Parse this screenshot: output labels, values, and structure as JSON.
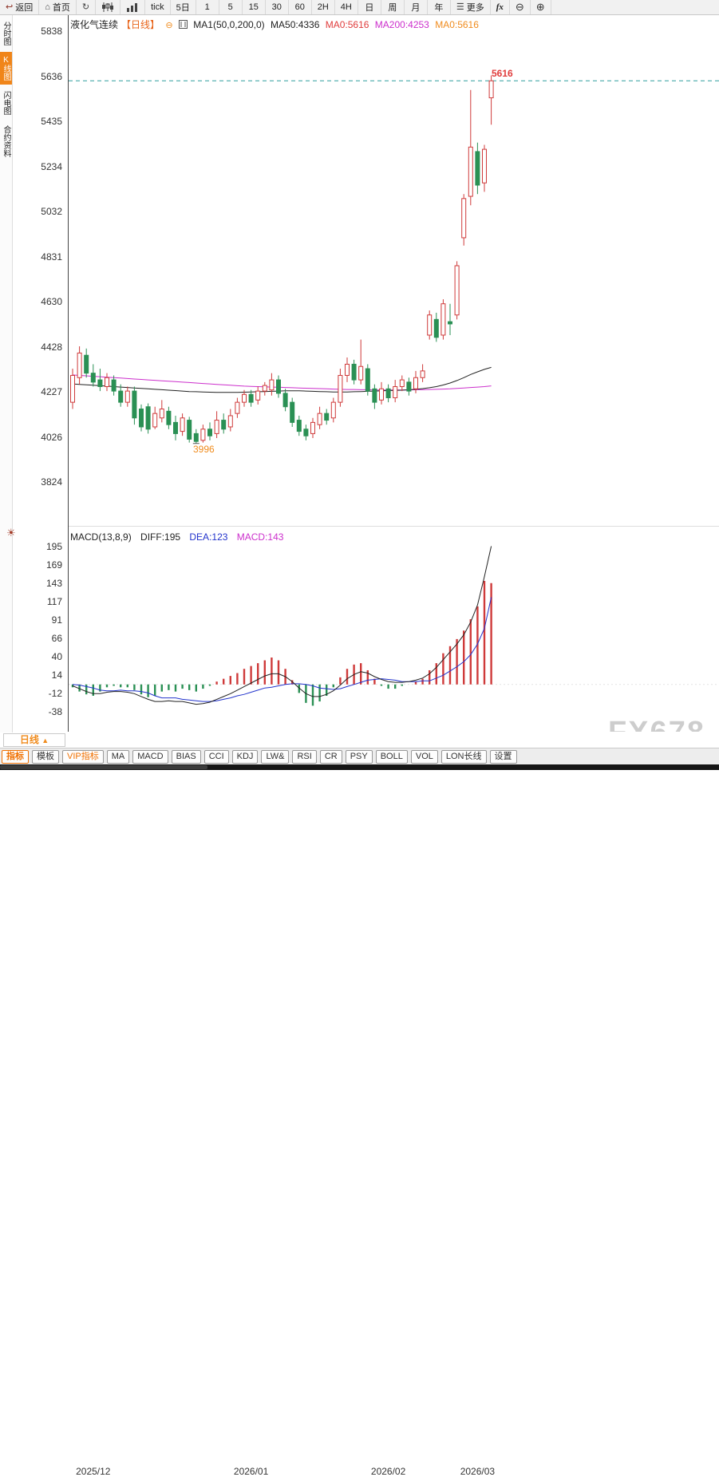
{
  "toolbar": {
    "back_label": "返回",
    "home_label": "首页",
    "tick_label": "tick",
    "five_day_label": "5日",
    "intervals": [
      "1",
      "5",
      "15",
      "30",
      "60",
      "2H",
      "4H",
      "日",
      "周",
      "月",
      "年"
    ],
    "more_label": "更多",
    "fx_label": "fx"
  },
  "sidebar": {
    "items": [
      {
        "label": "分时图",
        "active": false
      },
      {
        "label": "K线图",
        "active": true
      },
      {
        "label": "闪电图",
        "active": false
      },
      {
        "label": "合约资料",
        "active": false
      }
    ]
  },
  "chart_header": {
    "symbol": "液化气连续",
    "period": "【日线】",
    "ma_settings": "MA1(50,0,200,0)",
    "ma50": "MA50:4336",
    "ma0_red": "MA0:5616",
    "ma200": "MA200:4253",
    "ma0_orange": "MA0:5616"
  },
  "macd_header": {
    "label": "MACD(13,8,9)",
    "diff": "DIFF:195",
    "dea": "DEA:123",
    "macd": "MACD:143"
  },
  "annotations": {
    "last_price": "5616",
    "low_price": "3996",
    "period_selector": "日线",
    "period_selector_arrow": "▲",
    "watermark": "FX678"
  },
  "bottom_tabs": [
    {
      "label": "指标",
      "style": "primary"
    },
    {
      "label": "模板",
      "style": ""
    },
    {
      "label": "VIP指标",
      "style": "accent"
    },
    {
      "label": "MA",
      "style": ""
    },
    {
      "label": "MACD",
      "style": ""
    },
    {
      "label": "BIAS",
      "style": ""
    },
    {
      "label": "CCI",
      "style": ""
    },
    {
      "label": "KDJ",
      "style": ""
    },
    {
      "label": "LW&",
      "style": ""
    },
    {
      "label": "RSI",
      "style": ""
    },
    {
      "label": "CR",
      "style": ""
    },
    {
      "label": "PSY",
      "style": ""
    },
    {
      "label": "BOLL",
      "style": ""
    },
    {
      "label": "VOL",
      "style": ""
    },
    {
      "label": "LON长线",
      "style": ""
    },
    {
      "label": "设置",
      "style": ""
    }
  ],
  "colors": {
    "up": "#cf3a3a",
    "down": "#2a9054",
    "ma50": "#222222",
    "ma200": "#cc2fcc",
    "diff_line": "#222222",
    "dea_line": "#2233cc",
    "last_price_line": "#2e9e9e",
    "axis_line": "#444444",
    "red_text": "#e03c3c",
    "orange_text": "#f08c1e"
  },
  "chart_data": {
    "type": "candlestick",
    "title": "液化气连续 日线",
    "price_axis_labels": [
      "5838",
      "5636",
      "5435",
      "5234",
      "5032",
      "4831",
      "4630",
      "4428",
      "4227",
      "4026",
      "3824"
    ],
    "macd_axis_labels": [
      "195",
      "169",
      "143",
      "117",
      "91",
      "66",
      "40",
      "14",
      "-12",
      "-38"
    ],
    "ylim_price": [
      3824,
      5838
    ],
    "ylim_macd": [
      -38,
      195
    ],
    "x_ticks": [
      {
        "label": "2025/12",
        "index": 3
      },
      {
        "label": "2026/01",
        "index": 26
      },
      {
        "label": "2026/02",
        "index": 46
      },
      {
        "label": "2026/03",
        "index": 59
      }
    ],
    "last_price": 5616,
    "low_marker": {
      "index": 18,
      "value": 3996
    },
    "candles": [
      [
        4180,
        4330,
        4150,
        4300
      ],
      [
        4290,
        4430,
        4260,
        4400
      ],
      [
        4390,
        4420,
        4290,
        4310
      ],
      [
        4310,
        4350,
        4250,
        4270
      ],
      [
        4280,
        4330,
        4230,
        4250
      ],
      [
        4250,
        4310,
        4230,
        4290
      ],
      [
        4280,
        4300,
        4210,
        4230
      ],
      [
        4230,
        4260,
        4160,
        4180
      ],
      [
        4180,
        4250,
        4160,
        4230
      ],
      [
        4230,
        4250,
        4080,
        4110
      ],
      [
        4150,
        4170,
        4050,
        4070
      ],
      [
        4160,
        4175,
        4040,
        4060
      ],
      [
        4070,
        4160,
        4060,
        4130
      ],
      [
        4110,
        4190,
        4090,
        4150
      ],
      [
        4140,
        4160,
        4060,
        4080
      ],
      [
        4090,
        4120,
        4010,
        4040
      ],
      [
        4050,
        4130,
        4030,
        4110
      ],
      [
        4100,
        4115,
        4000,
        4015
      ],
      [
        4040,
        4060,
        3996,
        4005
      ],
      [
        4010,
        4080,
        4000,
        4060
      ],
      [
        4060,
        4090,
        4010,
        4030
      ],
      [
        4040,
        4140,
        4020,
        4100
      ],
      [
        4100,
        4130,
        4040,
        4060
      ],
      [
        4070,
        4150,
        4050,
        4120
      ],
      [
        4130,
        4200,
        4110,
        4180
      ],
      [
        4180,
        4235,
        4160,
        4215
      ],
      [
        4215,
        4235,
        4160,
        4180
      ],
      [
        4190,
        4250,
        4170,
        4230
      ],
      [
        4230,
        4270,
        4210,
        4255
      ],
      [
        4235,
        4310,
        4210,
        4280
      ],
      [
        4280,
        4300,
        4200,
        4220
      ],
      [
        4220,
        4240,
        4140,
        4160
      ],
      [
        4180,
        4200,
        4070,
        4090
      ],
      [
        4100,
        4120,
        4030,
        4050
      ],
      [
        4060,
        4080,
        4010,
        4030
      ],
      [
        4040,
        4110,
        4020,
        4090
      ],
      [
        4080,
        4160,
        4060,
        4130
      ],
      [
        4130,
        4150,
        4080,
        4100
      ],
      [
        4110,
        4200,
        4090,
        4180
      ],
      [
        4180,
        4330,
        4160,
        4300
      ],
      [
        4300,
        4380,
        4270,
        4350
      ],
      [
        4350,
        4370,
        4260,
        4280
      ],
      [
        4280,
        4460,
        4260,
        4340
      ],
      [
        4330,
        4350,
        4210,
        4230
      ],
      [
        4240,
        4260,
        4150,
        4180
      ],
      [
        4190,
        4270,
        4170,
        4240
      ],
      [
        4240,
        4260,
        4180,
        4200
      ],
      [
        4200,
        4280,
        4180,
        4250
      ],
      [
        4250,
        4300,
        4230,
        4280
      ],
      [
        4270,
        4290,
        4210,
        4230
      ],
      [
        4240,
        4320,
        4220,
        4290
      ],
      [
        4290,
        4350,
        4270,
        4320
      ],
      [
        4480,
        4590,
        4460,
        4570
      ],
      [
        4550,
        4580,
        4450,
        4470
      ],
      [
        4480,
        4640,
        4460,
        4620
      ],
      [
        4540,
        4620,
        4480,
        4530
      ],
      [
        4570,
        4810,
        4550,
        4790
      ],
      [
        4915,
        5110,
        4880,
        5090
      ],
      [
        5100,
        5575,
        5060,
        5320
      ],
      [
        5300,
        5340,
        5110,
        5150
      ],
      [
        5160,
        5330,
        5120,
        5310
      ],
      [
        5540,
        5640,
        5420,
        5616
      ]
    ],
    "ma50": [
      4262,
      4260,
      4258,
      4256,
      4254,
      4252,
      4250,
      4248,
      4246,
      4244,
      4242,
      4240,
      4238,
      4236,
      4234,
      4232,
      4230,
      4228,
      4227,
      4226,
      4225,
      4224,
      4224,
      4224,
      4224,
      4225,
      4226,
      4227,
      4228,
      4229,
      4230,
      4231,
      4231,
      4231,
      4230,
      4229,
      4228,
      4227,
      4226,
      4226,
      4226,
      4227,
      4228,
      4229,
      4230,
      4231,
      4232,
      4233,
      4234,
      4236,
      4238,
      4241,
      4245,
      4250,
      4257,
      4266,
      4277,
      4290,
      4304,
      4316,
      4327,
      4336
    ],
    "ma200": [
      4302,
      4300,
      4298,
      4296,
      4294,
      4292,
      4290,
      4288,
      4286,
      4284,
      4282,
      4280,
      4278,
      4276,
      4274,
      4272,
      4270,
      4268,
      4266,
      4264,
      4262,
      4260,
      4258,
      4256,
      4254,
      4252,
      4251,
      4250,
      4249,
      4248,
      4247,
      4246,
      4245,
      4244,
      4243,
      4242,
      4241,
      4240,
      4239,
      4238,
      4237,
      4237,
      4236,
      4236,
      4235,
      4235,
      4235,
      4235,
      4235,
      4235,
      4236,
      4236,
      4237,
      4238,
      4239,
      4240,
      4242,
      4244,
      4246,
      4248,
      4250,
      4253
    ],
    "macd": {
      "diff": [
        -2,
        -6,
        -10,
        -13,
        -13,
        -11,
        -10,
        -10,
        -11,
        -13,
        -17,
        -21,
        -24,
        -24,
        -23,
        -24,
        -24,
        -26,
        -28,
        -27,
        -25,
        -21,
        -17,
        -13,
        -8,
        -3,
        2,
        7,
        12,
        15,
        15,
        11,
        4,
        -5,
        -13,
        -17,
        -17,
        -14,
        -9,
        -1,
        8,
        14,
        18,
        16,
        11,
        7,
        4,
        3,
        3,
        4,
        6,
        9,
        15,
        24,
        35,
        46,
        57,
        70,
        88,
        112,
        152,
        195
      ],
      "dea": [
        0,
        -1,
        -3,
        -5,
        -8,
        -9,
        -9,
        -8,
        -9,
        -9,
        -10,
        -12,
        -16,
        -19,
        -19,
        -19,
        -21,
        -22,
        -23,
        -24,
        -24,
        -23,
        -21,
        -19,
        -16,
        -14,
        -11,
        -8,
        -5,
        -4,
        -2,
        0,
        1,
        1,
        0,
        -2,
        -5,
        -6,
        -7,
        -6,
        -3,
        0,
        3,
        6,
        7,
        8,
        7,
        6,
        4,
        4,
        4,
        5,
        5,
        9,
        13,
        19,
        25,
        32,
        42,
        57,
        79,
        123
      ],
      "hist": [
        -4,
        -10,
        -14,
        -16,
        -10,
        -4,
        -2,
        -4,
        -4,
        -8,
        -14,
        -18,
        -16,
        -10,
        -8,
        -10,
        -6,
        -8,
        -10,
        -6,
        -2,
        4,
        8,
        12,
        16,
        22,
        26,
        30,
        34,
        38,
        34,
        22,
        6,
        -12,
        -26,
        -30,
        -24,
        -16,
        -4,
        10,
        22,
        28,
        30,
        20,
        8,
        -2,
        -6,
        -6,
        -2,
        0,
        4,
        8,
        20,
        30,
        44,
        54,
        64,
        76,
        92,
        110,
        146,
        143
      ]
    }
  }
}
